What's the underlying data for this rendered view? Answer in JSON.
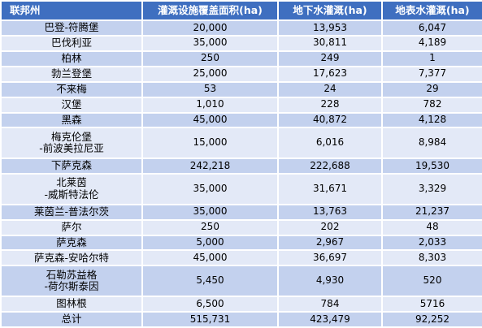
{
  "table": {
    "headers": [
      "联邦州",
      "灌溉设施覆盖面积(ha)",
      "地下水灌溉(ha)",
      "地表水灌溉(ha)"
    ],
    "rows": [
      {
        "state_lines": [
          "巴登-符腾堡"
        ],
        "coverage": "20,000",
        "groundwater": "13,953",
        "surface": "6,047"
      },
      {
        "state_lines": [
          "巴伐利亚"
        ],
        "coverage": "35,000",
        "groundwater": "30,811",
        "surface": "4,189"
      },
      {
        "state_lines": [
          "柏林"
        ],
        "coverage": "250",
        "groundwater": "249",
        "surface": "1"
      },
      {
        "state_lines": [
          "勃兰登堡"
        ],
        "coverage": "25,000",
        "groundwater": "17,623",
        "surface": "7,377"
      },
      {
        "state_lines": [
          "不来梅"
        ],
        "coverage": "53",
        "groundwater": "24",
        "surface": "29"
      },
      {
        "state_lines": [
          "汉堡"
        ],
        "coverage": "1,010",
        "groundwater": "228",
        "surface": "782"
      },
      {
        "state_lines": [
          "黑森"
        ],
        "coverage": "45,000",
        "groundwater": "40,872",
        "surface": "4,128"
      },
      {
        "state_lines": [
          "梅克伦堡",
          "-前波美拉尼亚"
        ],
        "coverage": "15,000",
        "groundwater": "6,016",
        "surface": "8,984"
      },
      {
        "state_lines": [
          "下萨克森"
        ],
        "coverage": "242,218",
        "groundwater": "222,688",
        "surface": "19,530"
      },
      {
        "state_lines": [
          "北莱茵",
          "-威斯特法伦"
        ],
        "coverage": "35,000",
        "groundwater": "31,671",
        "surface": "3,329"
      },
      {
        "state_lines": [
          "莱茵兰-普法尔茨"
        ],
        "coverage": "35,000",
        "groundwater": "13,763",
        "surface": "21,237"
      },
      {
        "state_lines": [
          "萨尔"
        ],
        "coverage": "250",
        "groundwater": "202",
        "surface": "48"
      },
      {
        "state_lines": [
          "萨克森"
        ],
        "coverage": "5,000",
        "groundwater": "2,967",
        "surface": "2,033"
      },
      {
        "state_lines": [
          "萨克森-安哈尔特"
        ],
        "coverage": "45,000",
        "groundwater": "36,697",
        "surface": "8,303"
      },
      {
        "state_lines": [
          "石勒苏益格",
          "-荷尔斯泰因"
        ],
        "coverage": "5,450",
        "groundwater": "4,930",
        "surface": "520"
      },
      {
        "state_lines": [
          "图林根"
        ],
        "coverage": "6,500",
        "groundwater": "784",
        "surface": "5716"
      },
      {
        "state_lines": [
          "总计"
        ],
        "coverage": "515,731",
        "groundwater": "423,479",
        "surface": "92,252"
      }
    ]
  },
  "colors": {
    "header_bg": "#3f6fc0",
    "row_odd_bg": "#c3d1ee",
    "row_even_bg": "#e3e9f7"
  }
}
